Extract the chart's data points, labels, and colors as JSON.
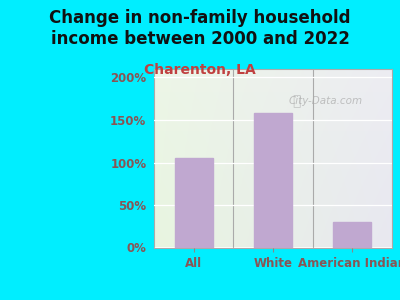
{
  "title": "Change in non-family household\nincome between 2000 and 2022",
  "subtitle": "Charenton, LA",
  "categories": [
    "All",
    "White",
    "American Indian"
  ],
  "values": [
    105,
    158,
    30
  ],
  "bar_color": "#c0a8d0",
  "yticks": [
    0,
    50,
    100,
    150,
    200
  ],
  "ytick_labels": [
    "0%",
    "50%",
    "100%",
    "150%",
    "200%"
  ],
  "ylim": [
    0,
    210
  ],
  "title_fontsize": 12,
  "subtitle_fontsize": 10,
  "subtitle_color": "#c04040",
  "title_color": "#111111",
  "bg_color": "#00eeff",
  "watermark": "City-Data.com",
  "tick_label_color": "#885555",
  "ytick_color": "#885555",
  "plot_bg_left": "#e8f5e0",
  "plot_bg_right": "#e8e8f0"
}
